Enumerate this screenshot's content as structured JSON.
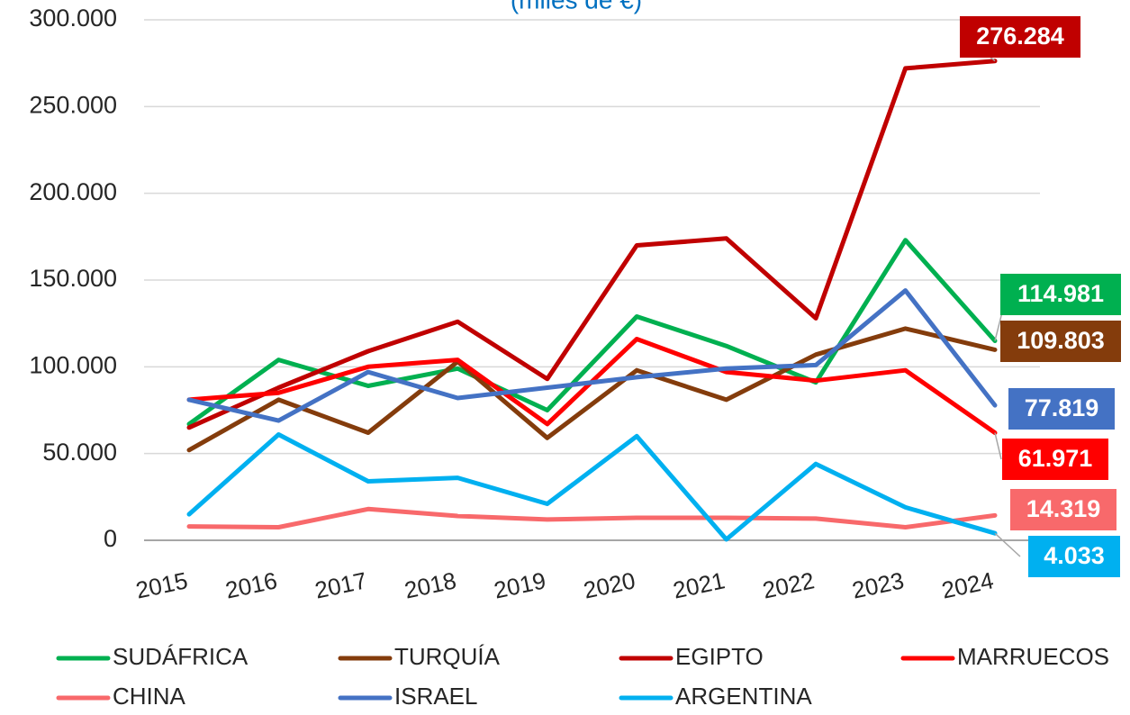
{
  "chart_data": {
    "type": "line",
    "subtitle": "(miles de €)",
    "categories": [
      "2015",
      "2016",
      "2017",
      "2018",
      "2019",
      "2020",
      "2021",
      "2022",
      "2023",
      "2024"
    ],
    "ylim": [
      0,
      300000
    ],
    "yticks": [
      0,
      {
        "value": 50000,
        "label": "50.000"
      },
      {
        "value": 100000,
        "label": "100.000"
      },
      {
        "value": 150000,
        "label": "150.000"
      },
      {
        "value": 200000,
        "label": "200.000"
      },
      {
        "value": 250000,
        "label": "250.000"
      },
      {
        "value": 300000,
        "label": "300.000"
      }
    ],
    "grid": true,
    "legend": "bottom",
    "series": [
      {
        "name": "SUDÁFRICA",
        "color": "#00b050",
        "values": [
          67000,
          104000,
          89000,
          99000,
          75000,
          129000,
          112000,
          91000,
          173000,
          114981
        ],
        "value_labels": [
          null,
          null,
          null,
          null,
          null,
          null,
          null,
          null,
          null,
          "114.981"
        ]
      },
      {
        "name": "TURQUÍA",
        "color": "#843c0c",
        "values": [
          52000,
          81000,
          62000,
          103000,
          59000,
          98000,
          81000,
          107000,
          122000,
          109803
        ],
        "value_labels": [
          null,
          null,
          null,
          null,
          null,
          null,
          null,
          null,
          null,
          "109.803"
        ]
      },
      {
        "name": "EGIPTO",
        "color": "#c00000",
        "values": [
          65000,
          88000,
          109000,
          126000,
          93000,
          170000,
          174000,
          128000,
          272000,
          276284
        ],
        "value_labels": [
          null,
          null,
          null,
          null,
          null,
          null,
          null,
          null,
          null,
          "276.284"
        ]
      },
      {
        "name": "MARRUECOS",
        "color": "#ff0000",
        "values": [
          81000,
          85000,
          100000,
          104000,
          67000,
          116000,
          97000,
          92000,
          98000,
          61971
        ],
        "value_labels": [
          null,
          null,
          null,
          null,
          null,
          null,
          null,
          null,
          null,
          "61.971"
        ]
      },
      {
        "name": "CHINA",
        "color": "#f8696b",
        "values": [
          8000,
          7500,
          18000,
          14000,
          12000,
          13000,
          13000,
          12500,
          7500,
          14319
        ],
        "value_labels": [
          null,
          null,
          null,
          null,
          null,
          null,
          null,
          null,
          null,
          "14.319"
        ]
      },
      {
        "name": "ISRAEL",
        "color": "#4472c4",
        "values": [
          81000,
          69000,
          97000,
          82000,
          88000,
          94000,
          99000,
          101000,
          144000,
          77819
        ],
        "value_labels": [
          null,
          null,
          null,
          null,
          null,
          null,
          null,
          null,
          null,
          "77.819"
        ]
      },
      {
        "name": "ARGENTINA",
        "color": "#00b0f0",
        "values": [
          15000,
          61000,
          34000,
          36000,
          21000,
          60000,
          500,
          44000,
          19000,
          4033
        ],
        "value_labels": [
          null,
          null,
          null,
          null,
          null,
          null,
          null,
          null,
          null,
          "4.033"
        ]
      }
    ]
  }
}
